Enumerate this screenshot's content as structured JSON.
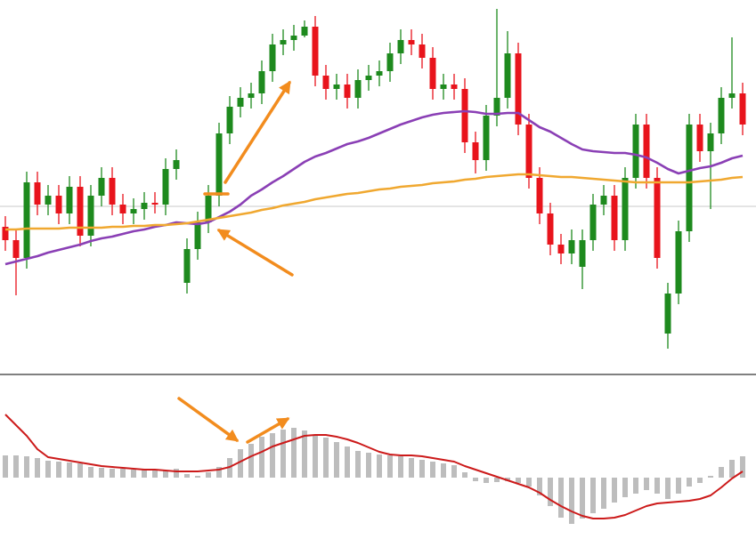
{
  "chart_data": [
    {
      "type": "candlestick",
      "up_color": "#1e8a1e",
      "down_color": "#e8141c",
      "open": [
        165,
        150,
        130,
        215,
        190,
        200,
        180,
        210,
        155,
        200,
        220,
        190,
        180,
        185,
        192,
        190,
        230,
        102,
        140,
        170,
        200,
        270,
        300,
        310,
        315,
        340,
        370,
        375,
        380,
        390,
        335,
        320,
        325,
        310,
        330,
        335,
        340,
        360,
        375,
        370,
        355,
        320,
        325,
        320,
        260,
        240,
        290,
        310,
        360,
        280,
        220,
        180,
        145,
        135,
        120,
        150,
        190,
        200,
        150,
        220,
        280,
        220,
        45,
        90,
        160,
        280,
        250,
        270,
        310,
        315
      ],
      "high": [
        177,
        162,
        227,
        227,
        212,
        212,
        222,
        222,
        212,
        232,
        232,
        202,
        197,
        204,
        204,
        242,
        252,
        152,
        182,
        212,
        282,
        312,
        322,
        327,
        352,
        382,
        387,
        392,
        397,
        402,
        347,
        337,
        337,
        342,
        347,
        352,
        372,
        387,
        387,
        382,
        367,
        337,
        337,
        332,
        272,
        302,
        410,
        385,
        372,
        292,
        232,
        192,
        157,
        162,
        162,
        202,
        212,
        212,
        232,
        292,
        292,
        232,
        102,
        172,
        292,
        292,
        282,
        322,
        378,
        327
      ],
      "low": [
        138,
        88,
        118,
        178,
        178,
        168,
        168,
        143,
        143,
        188,
        178,
        168,
        168,
        173,
        180,
        178,
        218,
        90,
        128,
        158,
        188,
        258,
        288,
        298,
        303,
        328,
        358,
        363,
        378,
        323,
        308,
        308,
        298,
        298,
        318,
        323,
        328,
        348,
        358,
        343,
        308,
        308,
        308,
        248,
        225,
        228,
        278,
        298,
        268,
        208,
        168,
        133,
        123,
        123,
        95,
        138,
        178,
        138,
        138,
        208,
        208,
        118,
        28,
        78,
        148,
        238,
        185,
        258,
        298,
        268
      ],
      "close": [
        150,
        130,
        215,
        190,
        200,
        180,
        210,
        155,
        200,
        220,
        190,
        180,
        185,
        192,
        190,
        230,
        240,
        140,
        170,
        200,
        270,
        300,
        310,
        315,
        340,
        370,
        375,
        380,
        390,
        335,
        320,
        325,
        310,
        330,
        335,
        340,
        360,
        375,
        370,
        355,
        320,
        325,
        320,
        260,
        240,
        290,
        310,
        360,
        280,
        220,
        180,
        145,
        135,
        150,
        150,
        190,
        200,
        150,
        220,
        280,
        220,
        130,
        90,
        160,
        280,
        250,
        270,
        310,
        315,
        280
      ],
      "series": [
        {
          "color": "#8a3fb5",
          "values": [
            123,
            126,
            129,
            132,
            136,
            139,
            142,
            145,
            149,
            152,
            154,
            157,
            160,
            162,
            165,
            167,
            170,
            169,
            168,
            170,
            176,
            182,
            190,
            200,
            207,
            215,
            222,
            230,
            238,
            244,
            248,
            253,
            258,
            261,
            265,
            270,
            275,
            280,
            284,
            288,
            291,
            293,
            294,
            295,
            294,
            292,
            292,
            293,
            293,
            285,
            277,
            272,
            265,
            258,
            252,
            250,
            249,
            248,
            248,
            246,
            243,
            237,
            230,
            225,
            228,
            231,
            233,
            237,
            242,
            245
          ]
        },
        {
          "color": "#f0a830",
          "values": [
            162,
            162,
            163,
            163,
            163,
            163,
            164,
            164,
            164,
            164,
            165,
            165,
            166,
            166,
            167,
            167,
            168,
            169,
            171,
            173,
            175,
            177,
            179,
            181,
            184,
            186,
            189,
            191,
            193,
            196,
            198,
            200,
            202,
            203,
            205,
            207,
            208,
            210,
            211,
            212,
            214,
            215,
            216,
            218,
            219,
            221,
            222,
            223,
            224,
            224,
            223,
            222,
            221,
            221,
            220,
            219,
            218,
            217,
            216,
            215,
            215,
            215,
            215,
            215,
            215,
            216,
            217,
            218,
            220,
            221
          ]
        }
      ],
      "reference_line": 188,
      "ylim": [
        0,
        420
      ]
    },
    {
      "type": "macd",
      "histogram_color": "#bdbdbd",
      "signal_color": "#cc1a1a",
      "histogram": [
        25,
        25,
        24,
        22,
        19,
        18,
        17,
        16,
        12,
        11,
        10,
        10,
        9,
        9,
        8,
        8,
        10,
        4,
        2,
        6,
        12,
        22,
        32,
        38,
        46,
        50,
        54,
        56,
        53,
        48,
        45,
        40,
        35,
        30,
        28,
        26,
        25,
        24,
        22,
        20,
        18,
        16,
        14,
        6,
        -4,
        -6,
        -5,
        -4,
        -6,
        -10,
        -20,
        -32,
        -45,
        -52,
        -46,
        -40,
        -35,
        -28,
        -22,
        -18,
        -14,
        -18,
        -24,
        -18,
        -10,
        -6,
        2,
        12,
        20,
        24
      ],
      "signal": [
        71,
        59,
        47,
        32,
        23,
        21,
        19,
        17,
        15,
        13,
        12,
        11,
        10,
        9,
        9,
        8,
        7,
        7,
        7,
        8,
        9,
        12,
        18,
        24,
        29,
        35,
        39,
        43,
        47,
        48,
        48,
        46,
        43,
        39,
        34,
        29,
        26,
        25,
        25,
        24,
        22,
        20,
        18,
        13,
        9,
        5,
        1,
        -3,
        -7,
        -11,
        -17,
        -25,
        -32,
        -38,
        -43,
        -46,
        -46,
        -45,
        -42,
        -37,
        -32,
        -29,
        -28,
        -27,
        -26,
        -24,
        -20,
        -11,
        -1,
        7
      ],
      "ylim": [
        -69,
        115
      ]
    }
  ]
}
